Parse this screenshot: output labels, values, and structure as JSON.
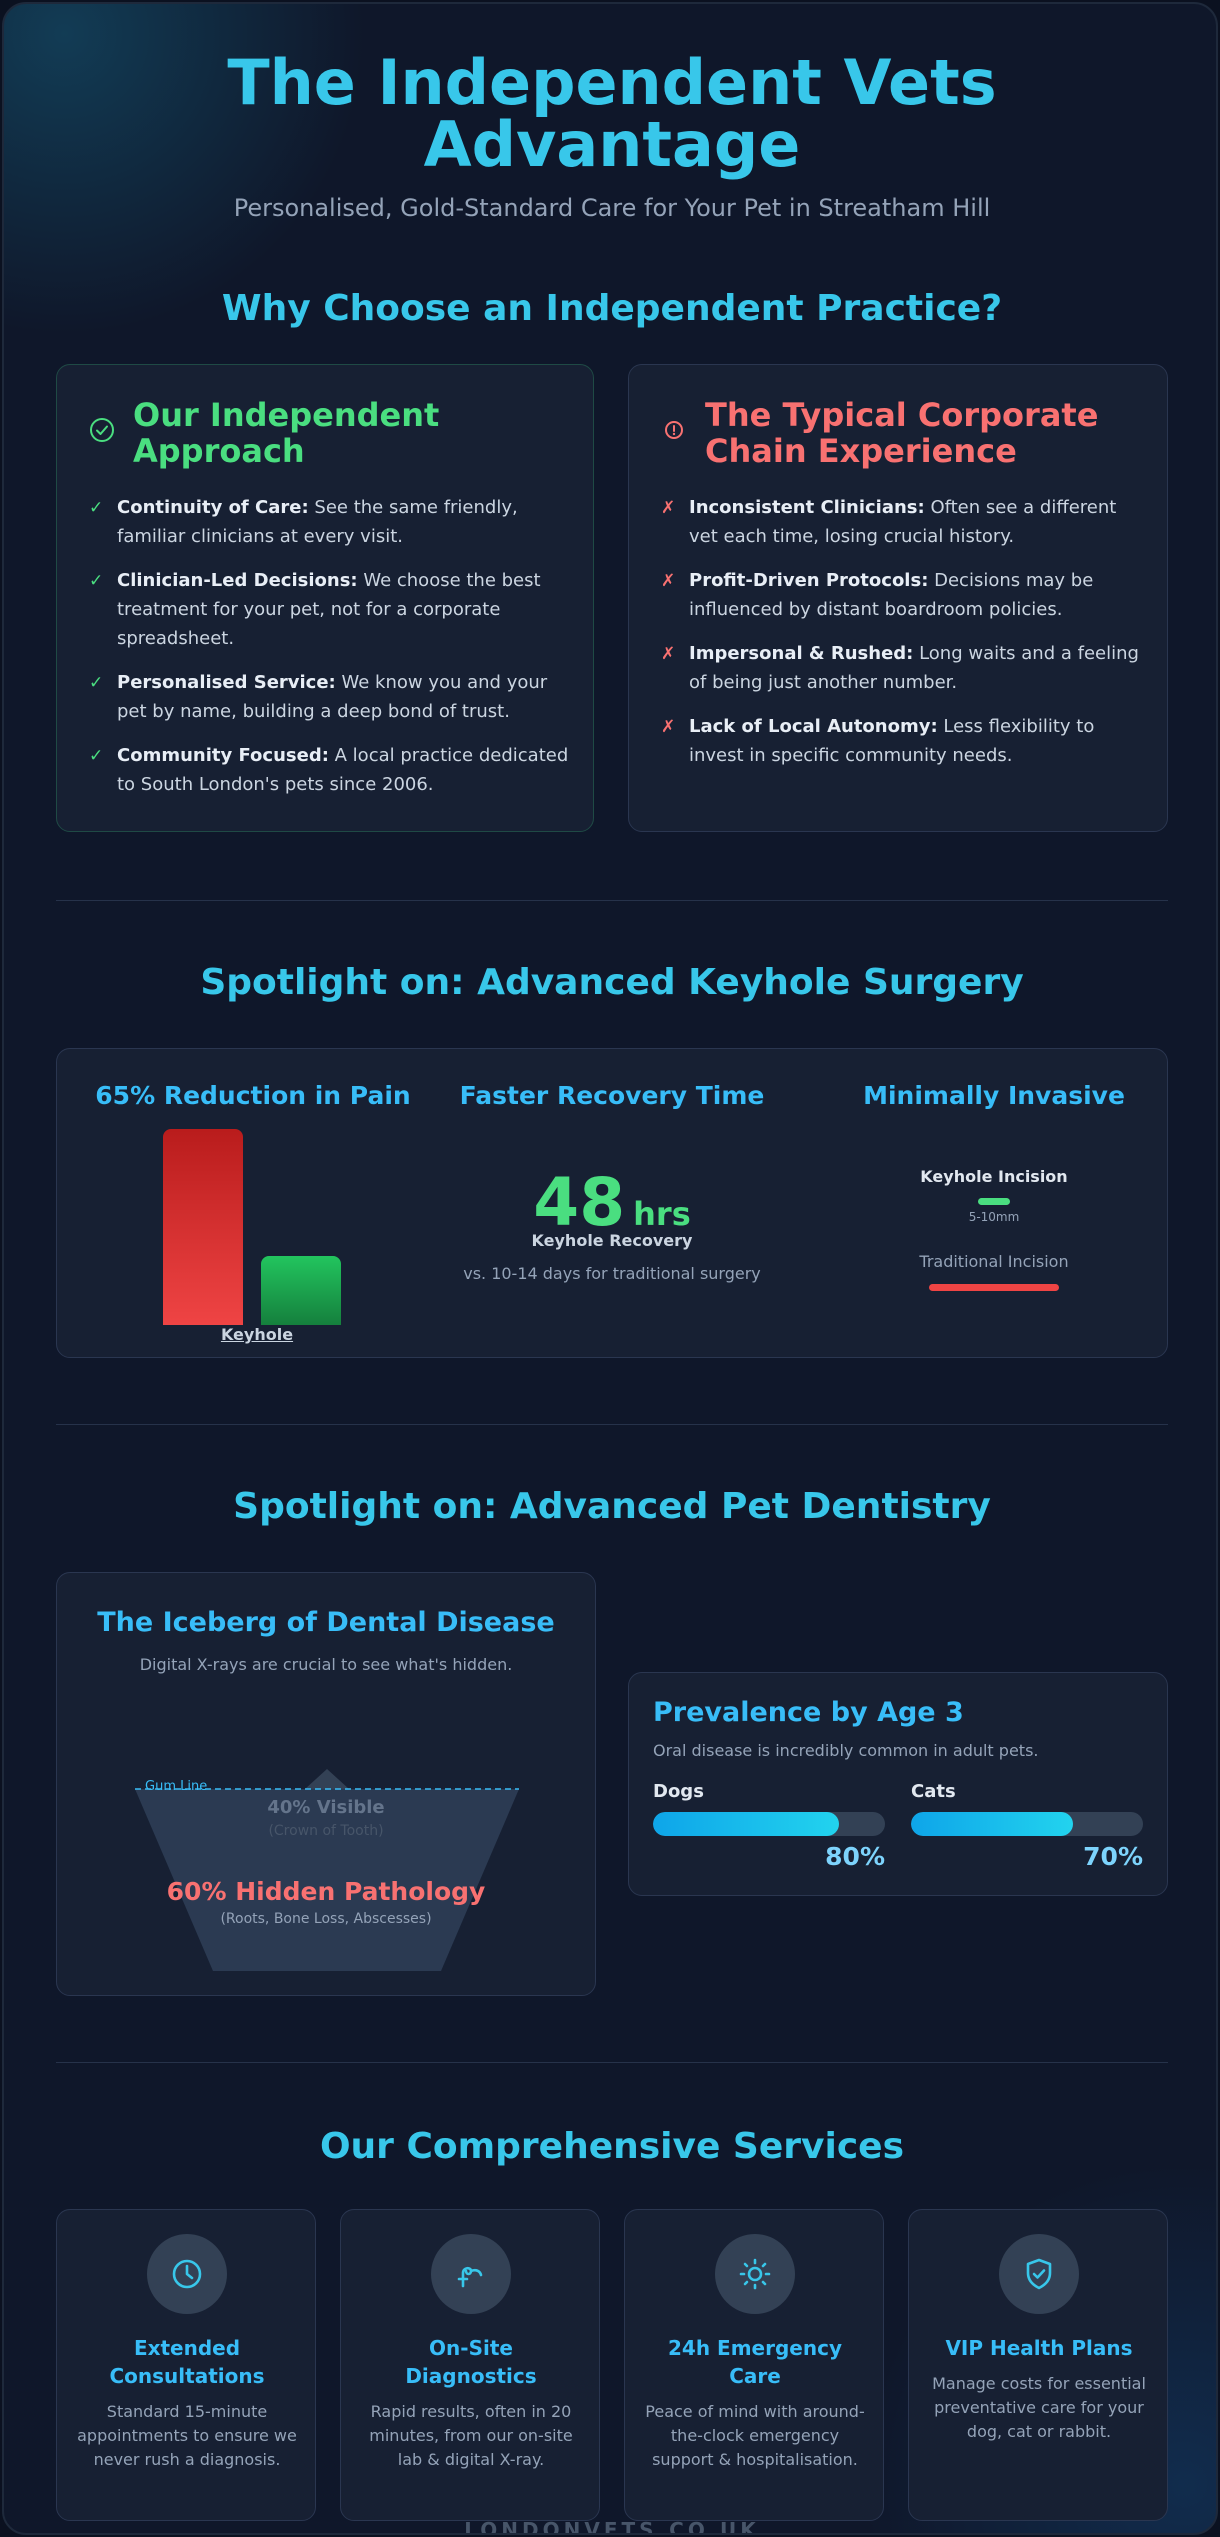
{
  "header": {
    "title_line1": "The Independent Vets",
    "title_line2": "Advantage",
    "subtitle": "Personalised, Gold-Standard Care for Your Pet in Streatham Hill"
  },
  "why": {
    "title": "Why Choose an Independent Practice?",
    "independent": {
      "heading_line1": "Our Independent",
      "heading_line2": "Approach",
      "items": [
        {
          "bold": "Continuity of Care:",
          "text": " See the same friendly, familiar clinicians at every visit."
        },
        {
          "bold": "Clinician-Led Decisions:",
          "text": " We choose the best treatment for your pet, not for a corporate spreadsheet."
        },
        {
          "bold": "Personalised Service:",
          "text": " We know you and your pet by name, building a deep bond of trust."
        },
        {
          "bold": "Community Focused:",
          "text": " A local practice dedicated to South London's pets since 2006."
        }
      ]
    },
    "corporate": {
      "heading_line1": "The Typical Corporate",
      "heading_line2": "Chain Experience",
      "items": [
        {
          "bold": "Inconsistent Clinicians:",
          "text": " Often see a different vet each time, losing crucial history."
        },
        {
          "bold": "Profit-Driven Protocols:",
          "text": " Decisions may be influenced by distant boardroom policies."
        },
        {
          "bold": "Impersonal & Rushed:",
          "text": " Long waits and a feeling of being just another number."
        },
        {
          "bold": "Lack of Local Autonomy:",
          "text": " Less flexibility to invest in specific community needs."
        }
      ]
    }
  },
  "keyhole": {
    "title": "Spotlight on: Advanced Keyhole Surgery",
    "pain": {
      "title": "65% Reduction in Pain",
      "bar_label": "Keyhole",
      "traditional_level": 100,
      "keyhole_level": 35
    },
    "recovery": {
      "title": "Faster Recovery Time",
      "value": "48",
      "unit": "hrs",
      "label": "Keyhole Recovery",
      "note": "vs. 10-14 days for traditional surgery"
    },
    "invasive": {
      "title": "Minimally Invasive",
      "keyhole_label": "Keyhole Incision",
      "keyhole_size": "5-10mm",
      "traditional_label": "Traditional Incision"
    }
  },
  "dentistry": {
    "title": "Spotlight on: Advanced Pet Dentistry",
    "iceberg": {
      "title": "The Iceberg of Dental Disease",
      "subtitle": "Digital X-rays are crucial to see what's hidden.",
      "gum_line": "Gum Line",
      "visible": "40% Visible",
      "visible_note": "(Crown of Tooth)",
      "hidden": "60% Hidden Pathology",
      "hidden_note": "(Roots, Bone Loss, Abscesses)"
    },
    "prevalence": {
      "title": "Prevalence by Age 3",
      "subtitle": "Oral disease is incredibly common in adult pets.",
      "bars": [
        {
          "label": "Dogs",
          "value": "80%",
          "fraction": 0.8
        },
        {
          "label": "Cats",
          "value": "70%",
          "fraction": 0.7
        }
      ]
    }
  },
  "services": {
    "title": "Our Comprehensive Services",
    "items": [
      {
        "icon": "clock-icon",
        "title_line1": "Extended",
        "title_line2": "Consultations",
        "desc": "Standard 15-minute appointments to ensure we never rush a diagnosis."
      },
      {
        "icon": "stethoscope-icon",
        "title_line1": "On-Site",
        "title_line2": "Diagnostics",
        "desc": "Rapid results, often in 20 minutes, from our on-site lab & digital X-ray."
      },
      {
        "icon": "sun-icon",
        "title_line1": "24h Emergency",
        "title_line2": "Care",
        "desc": "Peace of mind with around-the-clock emergency support & hospitalisation."
      },
      {
        "icon": "shield-check-icon",
        "title_line1": "VIP Health Plans",
        "title_line2": "",
        "desc": "Manage costs for essential preventative care for your dog, cat or rabbit."
      }
    ]
  },
  "footer": {
    "text": "LONDONVETS.CO.UK"
  },
  "colors": {
    "accent": "#38c7ea",
    "green": "#4ade80",
    "red": "#f87171",
    "blue": "#38bdf8"
  }
}
